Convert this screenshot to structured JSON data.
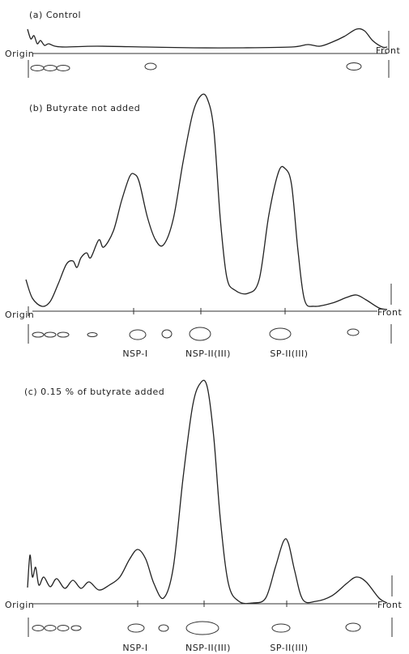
{
  "panels": [
    {
      "label": "(a) Control",
      "origin": "Origin",
      "front": "Front"
    },
    {
      "label": "(b) Butyrate not added",
      "origin": "Origin",
      "front": "Front",
      "spot_labels": [
        "NSP-I",
        "NSP-II(III)",
        "SP-II(III)"
      ]
    },
    {
      "label": "(c) 0.15 % of butyrate added",
      "origin": "Origin",
      "front": "Front",
      "spot_labels": [
        "NSP-I",
        "NSP-II(III)",
        "SP-II(III)"
      ]
    }
  ]
}
